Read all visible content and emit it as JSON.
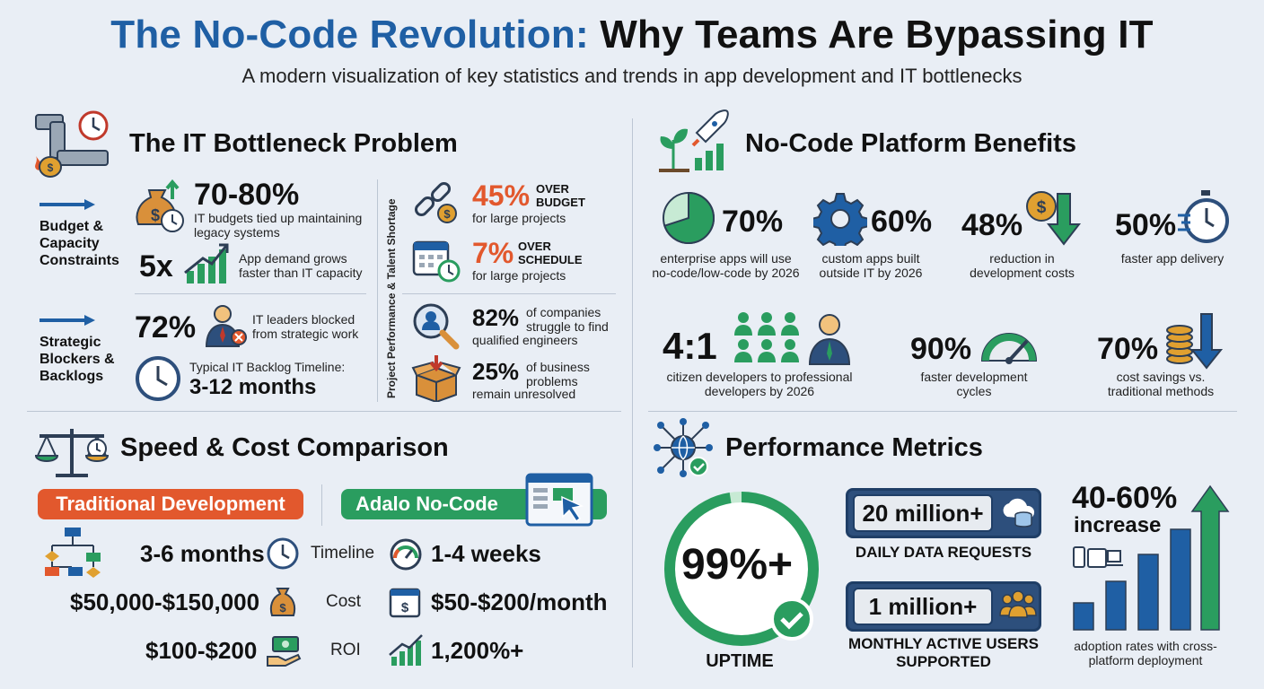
{
  "header": {
    "title_part1": "The No-Code Revolution:",
    "title_part2": "Why Teams Are Bypassing IT",
    "subtitle": "A modern visualization of key statistics and trends in app development and IT bottlenecks"
  },
  "bottleneck": {
    "title": "The IT Bottleneck Problem",
    "group1_label": "Budget & Capacity Constraints",
    "group2_label": "Strategic Blockers & Backlogs",
    "stat1_value": "70-80%",
    "stat1_text": "IT budgets tied up maintaining legacy systems",
    "stat2_value": "5x",
    "stat2_text": "App demand grows faster than IT capacity",
    "stat3_value": "72%",
    "stat3_text": "IT leaders blocked from strategic work",
    "stat4_label": "Typical IT Backlog Timeline:",
    "stat4_value": "3-12 months",
    "side_label": "Project Performance & Talent Shortage",
    "p1_value": "45%",
    "p1_tag": "OVER BUDGET",
    "p1_text": "for large projects",
    "p2_value": "7%",
    "p2_tag": "OVER SCHEDULE",
    "p2_text": "for large projects",
    "p3_value": "82%",
    "p3_text1": "of companies struggle to find",
    "p3_text2": "qualified engineers",
    "p4_value": "25%",
    "p4_text1": "of business problems",
    "p4_text2": "remain unresolved"
  },
  "benefits": {
    "title": "No-Code Platform Benefits",
    "items": [
      {
        "value": "70%",
        "text": "enterprise apps will use no-code/low-code by 2026"
      },
      {
        "value": "60%",
        "text": "custom apps built outside IT by 2026"
      },
      {
        "value": "48%",
        "text": "reduction in development costs"
      },
      {
        "value": "50%",
        "text": "faster app delivery"
      },
      {
        "value": "4:1",
        "text": "citizen developers to professional developers by 2026"
      },
      {
        "value": "90%",
        "text": "faster development cycles"
      },
      {
        "value": "70%",
        "text": "cost savings vs. traditional methods"
      }
    ]
  },
  "comparison": {
    "title": "Speed & Cost Comparison",
    "traditional_label": "Traditional Development",
    "nocode_label": "Adalo No-Code",
    "rows": [
      {
        "label": "Timeline",
        "traditional": "3-6 months",
        "nocode": "1-4 weeks"
      },
      {
        "label": "Cost",
        "traditional": "$50,000-$150,000",
        "nocode": "$50-$200/month"
      },
      {
        "label": "ROI",
        "traditional": "$100-$200",
        "nocode": "1,200%+"
      }
    ]
  },
  "performance": {
    "title": "Performance Metrics",
    "uptime_value": "99%+",
    "uptime_label": "UPTIME",
    "requests_value": "20 million+",
    "requests_label": "DAILY DATA REQUESTS",
    "users_value": "1 million+",
    "users_label": "MONTHLY ACTIVE USERS SUPPORTED",
    "increase_value": "40-60%",
    "increase_label": "increase",
    "adoption_text": "adoption rates with cross-platform deployment"
  },
  "colors": {
    "blue": "#1f5fa4",
    "green": "#2a9d5f",
    "orange": "#e2582d",
    "gold": "#e0a030",
    "background": "#e9eef5"
  }
}
